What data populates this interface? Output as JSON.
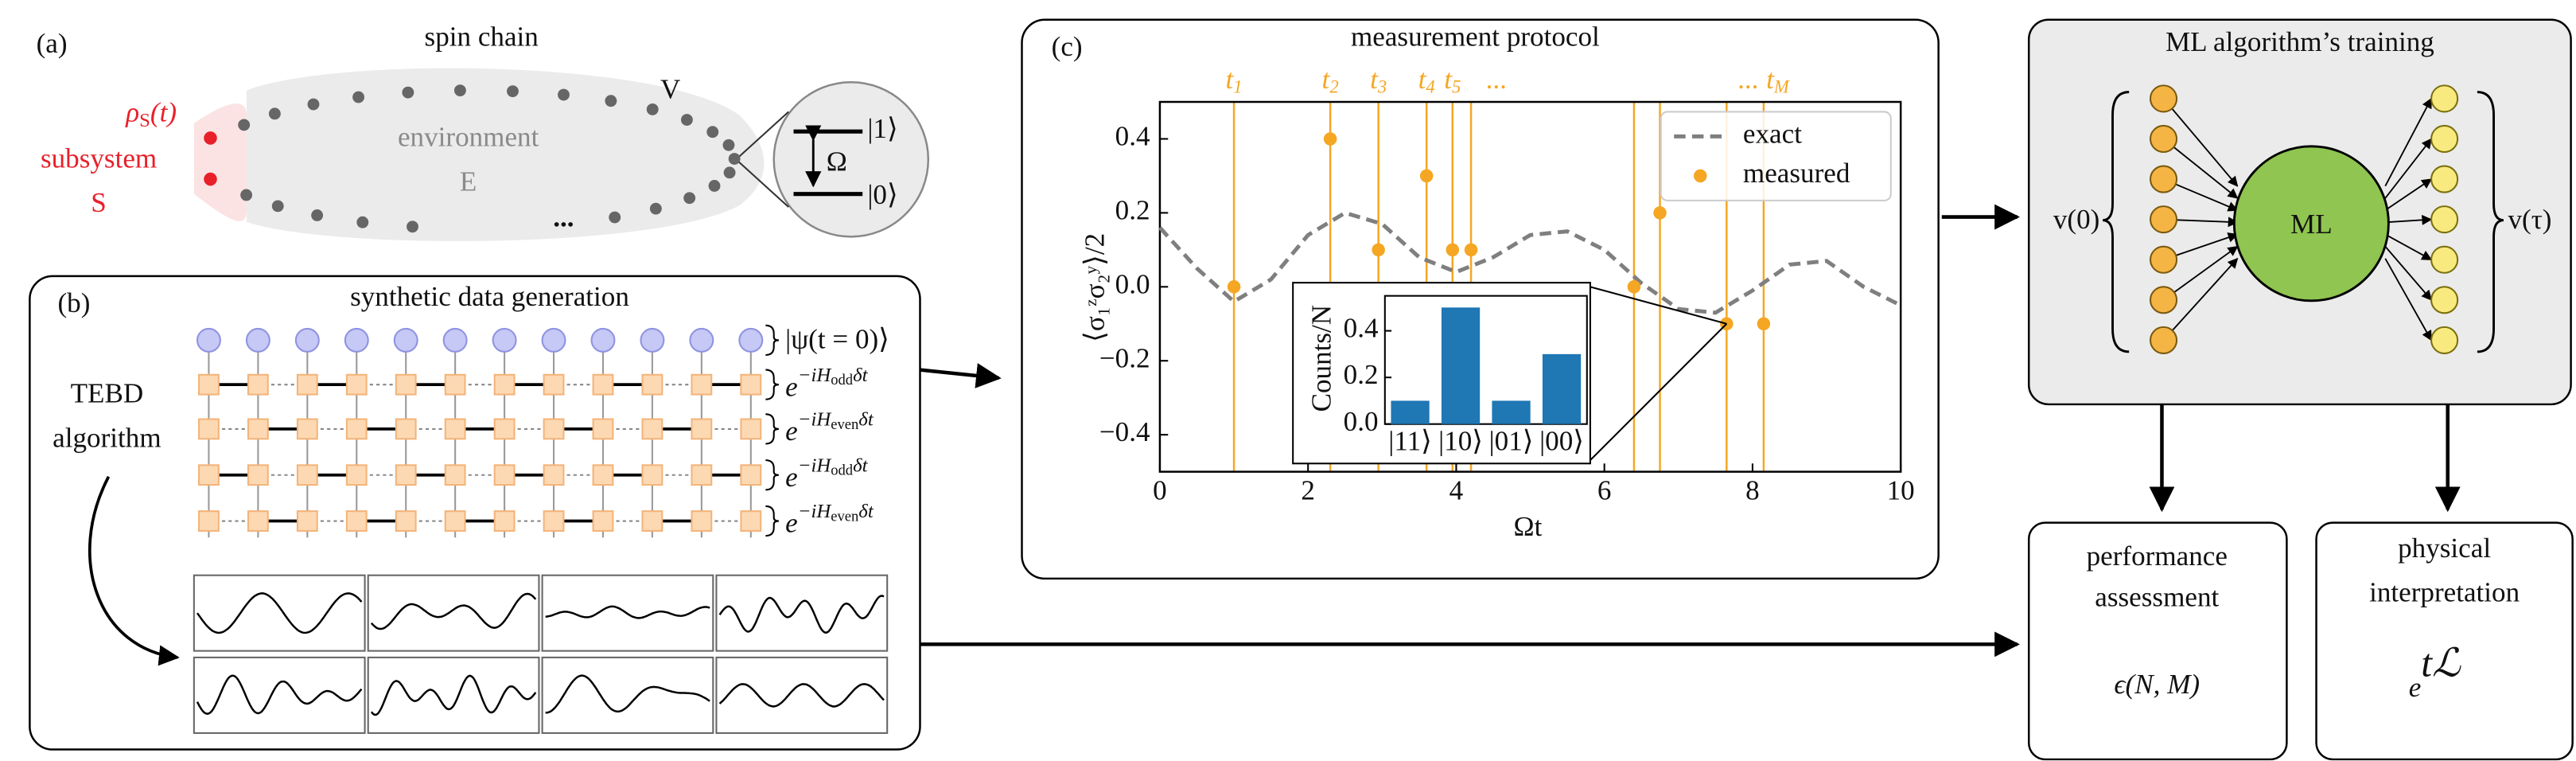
{
  "panel_a": {
    "label": "(a)",
    "title": "spin chain",
    "rho": "ρ",
    "rho_sub": "S",
    "rho_arg": "(t)",
    "subsystem": "subsystem",
    "subsystem_symbol": "S",
    "environment": "environment",
    "environment_symbol": "E",
    "coupling": "V",
    "ellipsis": "...",
    "level_1": "|1⟩",
    "level_0": "|0⟩",
    "frequency": "Ω"
  },
  "panel_b": {
    "label": "(b)",
    "title": "synthetic data generation",
    "algorithm": [
      "TEBD",
      "algorithm"
    ],
    "initial_state": "|ψ(t = 0)⟩",
    "gate_base": "e",
    "gates": [
      {
        "exp": "−iH",
        "sub": "odd",
        "tail": "δt"
      },
      {
        "exp": "−iH",
        "sub": "even",
        "tail": "δt"
      },
      {
        "exp": "−iH",
        "sub": "odd",
        "tail": "δt"
      },
      {
        "exp": "−iH",
        "sub": "even",
        "tail": "δt"
      }
    ]
  },
  "panel_c_label": "(c)",
  "chart_data": [
    {
      "type": "line",
      "title": "measurement protocol",
      "xlabel": "Ωt",
      "ylabel": "⟨σ₁ᶻσ₂ʸ⟩/2",
      "xlim": [
        0,
        10
      ],
      "ylim": [
        -0.5,
        0.5
      ],
      "xticks": [
        0,
        2,
        4,
        6,
        8,
        10
      ],
      "yticks": [
        {
          "value": -0.4,
          "label": "−0.4"
        },
        {
          "value": -0.2,
          "label": "−0.2"
        },
        {
          "value": 0,
          "label": "0.0"
        },
        0.2,
        0.4
      ],
      "legend": "upper right",
      "time_labels": [
        {
          "text": "t",
          "sub": "1"
        },
        {
          "text": "t",
          "sub": "2"
        },
        {
          "text": "t",
          "sub": "3"
        },
        {
          "text": "t",
          "sub": "4"
        },
        {
          "text": "t",
          "sub": "5"
        },
        {
          "text": "..."
        },
        {
          "text": "... t",
          "sub": "M"
        }
      ],
      "series": [
        {
          "name": "exact",
          "color": "#7f7f7f",
          "style": "dashed",
          "x": [
            0,
            0.5,
            1,
            1.5,
            2,
            2.5,
            3,
            3.5,
            4,
            4.5,
            5,
            5.5,
            6,
            6.5,
            7,
            7.5,
            8,
            8.5,
            9,
            9.5,
            10
          ],
          "values": [
            0.16,
            0.05,
            -0.04,
            0.02,
            0.14,
            0.2,
            0.17,
            0.08,
            0.04,
            0.08,
            0.14,
            0.15,
            0.1,
            0.01,
            -0.06,
            -0.07,
            -0.01,
            0.06,
            0.07,
            0.0,
            -0.05
          ]
        },
        {
          "name": "measured",
          "color": "#f5a623",
          "style": "markers",
          "x": [
            1.0,
            2.3,
            2.95,
            3.6,
            3.95,
            4.2,
            6.4,
            6.75,
            7.65,
            8.15
          ],
          "values": [
            0.0,
            0.4,
            0.1,
            0.3,
            0.1,
            0.1,
            0.0,
            0.2,
            -0.1,
            -0.1
          ]
        }
      ]
    },
    {
      "type": "bar",
      "ylabel": "Counts/N",
      "categories": [
        "|11⟩",
        "|10⟩",
        "|01⟩",
        "|00⟩"
      ],
      "values": [
        0.1,
        0.5,
        0.1,
        0.3
      ],
      "color": "#1f77b4",
      "ylim": [
        0,
        0.55
      ],
      "yticks": [
        {
          "value": 0,
          "label": "0.0"
        },
        0.2,
        0.4
      ]
    }
  ],
  "panel_d": {
    "title": "ML algorithm’s training",
    "center": "ML",
    "input": "v(0)",
    "output": "v(τ)"
  },
  "panel_e": {
    "lines": [
      "performance",
      "assessment"
    ],
    "formula": "ϵ(N, M)"
  },
  "panel_f": {
    "lines": [
      "physical",
      "interpretation"
    ],
    "base": "e",
    "exp": "tℒ"
  }
}
